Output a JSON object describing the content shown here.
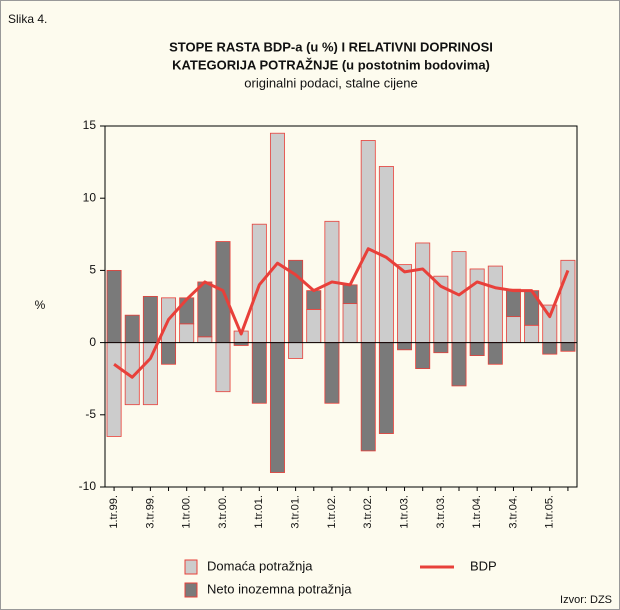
{
  "figure_label": "Slika 4.",
  "chart_data": {
    "type": "bar",
    "title": [
      "STOPE RASTA BDP-a (u %) I RELATIVNI DOPRINOSI",
      "KATEGORIJA POTRAŽNJE (u postotnim bodovima)"
    ],
    "subtitle": "originalni podaci, stalne cijene",
    "ylabel": "%",
    "categories": [
      "1.tr.99.",
      null,
      "3.tr.99.",
      null,
      "1.tr.00.",
      null,
      "3.tr.00.",
      null,
      "1.tr.01.",
      null,
      "3.tr.01.",
      null,
      "1.tr.02.",
      null,
      "3.tr.02.",
      null,
      "1.tr.03.",
      null,
      "3.tr.03.",
      null,
      "1.tr.04.",
      null,
      "3.tr.04.",
      null,
      "1.tr.05.",
      null
    ],
    "series": [
      {
        "name": "Domaća potražnja",
        "color": "#cccccc",
        "edgecolor": "#e8403a",
        "values": [
          -6.5,
          -4.3,
          -4.3,
          3.1,
          1.3,
          0.4,
          -3.4,
          0.8,
          8.2,
          14.5,
          -1.1,
          2.3,
          8.4,
          2.7,
          14.0,
          12.2,
          5.4,
          6.9,
          4.6,
          6.3,
          5.1,
          5.3,
          1.8,
          1.2,
          2.6,
          5.7
        ]
      },
      {
        "name": "Neto inozemna potražnja",
        "color": "#7a7a7a",
        "edgecolor": "#e8403a",
        "values": [
          5.0,
          1.9,
          3.2,
          -1.5,
          1.8,
          3.8,
          7.0,
          -0.2,
          -4.2,
          -9.0,
          5.7,
          1.3,
          -4.2,
          1.3,
          -7.5,
          -6.3,
          -0.5,
          -1.8,
          -0.7,
          -3.0,
          -0.9,
          -1.5,
          1.9,
          2.4,
          -0.8,
          -0.6
        ]
      },
      {
        "name": "BDP",
        "type": "line",
        "color": "#e8403a",
        "values": [
          -1.5,
          -2.4,
          -1.1,
          1.6,
          3.0,
          4.2,
          3.6,
          0.6,
          4.0,
          5.5,
          4.7,
          3.6,
          4.2,
          4.0,
          6.5,
          5.9,
          4.9,
          5.1,
          3.9,
          3.3,
          4.2,
          3.8,
          3.6,
          3.6,
          1.8,
          5.0
        ]
      }
    ],
    "ylim": [
      -10,
      15
    ],
    "yticks": [
      -10,
      -5,
      0,
      5,
      10,
      15
    ],
    "source": "Izvor: DZS"
  }
}
